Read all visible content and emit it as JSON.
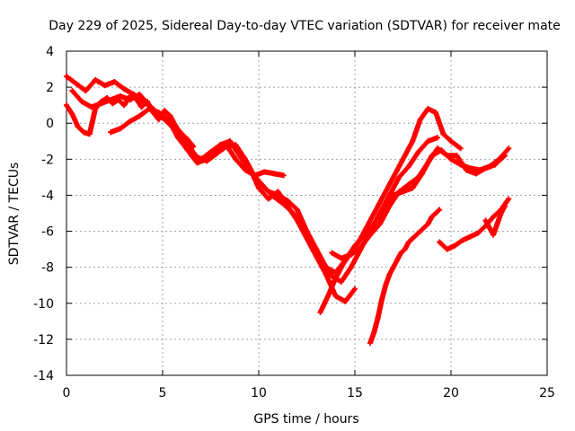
{
  "chart_data": {
    "type": "scatter",
    "title": "Day 229 of 2025, Sidereal Day-to-day VTEC variation (SDTVAR) for receiver mate",
    "xlabel": "GPS time / hours",
    "ylabel": "SDTVAR / TECUs",
    "xlim": [
      0,
      25
    ],
    "ylim": [
      -14,
      4
    ],
    "xticks": [
      0,
      5,
      10,
      15,
      20,
      25
    ],
    "yticks": [
      -14,
      -12,
      -10,
      -8,
      -6,
      -4,
      -2,
      0,
      2,
      4
    ],
    "grid": true,
    "marker": "+",
    "color": "#ff0000",
    "series": [
      {
        "x": [
          0.0,
          0.5,
          1.0,
          1.5,
          2.0,
          2.5,
          3.0,
          3.5,
          4.0,
          4.5,
          5.0,
          5.5,
          6.0,
          6.5,
          7.0,
          7.5,
          8.0,
          8.5,
          9.0,
          9.5,
          10.0,
          10.5,
          11.0,
          11.5,
          12.0,
          12.5,
          13.0,
          13.5,
          14.0,
          14.5,
          15.0,
          15.5,
          16.0,
          16.5,
          17.0,
          17.5,
          18.0,
          18.5,
          19.0,
          19.5,
          20.0,
          20.5,
          21.0,
          21.5,
          22.0,
          22.5,
          23.0
        ],
        "y": [
          2.6,
          2.2,
          1.8,
          2.4,
          2.1,
          2.3,
          1.9,
          1.6,
          1.2,
          0.8,
          0.3,
          -0.2,
          -0.8,
          -1.8,
          -2.0,
          -1.6,
          -1.2,
          -1.0,
          -1.8,
          -2.6,
          -3.2,
          -3.8,
          -4.0,
          -4.3,
          -4.8,
          -6.0,
          -7.0,
          -8.0,
          -8.3,
          -7.6,
          -6.8,
          -6.2,
          -5.6,
          -4.8,
          -4.0,
          -3.8,
          -3.6,
          -2.8,
          -1.8,
          -1.5,
          -2.0,
          -2.3,
          -2.5,
          -2.6,
          -2.4,
          -2.0,
          -1.4
        ]
      },
      {
        "x": [
          0.3,
          0.8,
          1.3,
          1.8,
          2.3,
          2.8,
          3.3,
          3.8,
          4.3,
          4.8,
          5.3,
          5.8,
          6.3,
          6.8,
          7.3,
          7.8,
          8.3,
          8.8,
          9.3,
          9.8,
          10.3,
          10.8,
          11.3,
          11.8,
          12.3,
          12.8,
          13.3,
          13.8,
          14.3,
          14.8,
          15.3,
          15.8,
          16.3,
          16.8,
          17.3,
          17.8,
          18.3,
          18.8,
          19.3
        ],
        "y": [
          1.8,
          1.2,
          0.9,
          1.1,
          1.3,
          1.5,
          1.3,
          1.6,
          1.0,
          0.5,
          0.1,
          -0.5,
          -1.2,
          -1.9,
          -2.1,
          -1.7,
          -1.3,
          -1.2,
          -2.0,
          -3.0,
          -3.6,
          -4.1,
          -4.5,
          -5.0,
          -5.8,
          -6.8,
          -7.8,
          -8.5,
          -8.8,
          -8.0,
          -7.0,
          -6.0,
          -5.0,
          -4.0,
          -3.0,
          -2.4,
          -1.6,
          -1.0,
          -0.8
        ]
      },
      {
        "x": [
          0.0,
          0.3,
          0.6,
          0.9,
          1.2,
          1.5,
          1.8,
          2.1,
          2.4,
          2.7,
          3.0,
          3.3,
          3.6,
          3.9,
          4.2,
          4.5,
          4.8,
          5.1,
          5.4,
          5.7,
          6.0,
          6.3,
          6.6
        ],
        "y": [
          1.0,
          0.5,
          -0.2,
          -0.5,
          -0.6,
          0.8,
          1.2,
          1.4,
          1.1,
          1.3,
          1.0,
          1.5,
          1.4,
          0.9,
          1.2,
          0.6,
          0.2,
          0.7,
          0.4,
          -0.2,
          -0.6,
          -0.9,
          -1.3
        ]
      },
      {
        "x": [
          2.3,
          2.8,
          3.3,
          3.8,
          4.3,
          4.8,
          5.3,
          5.8,
          6.3,
          6.8,
          7.3,
          7.8,
          8.3,
          8.8,
          9.3,
          9.8,
          10.3,
          10.8,
          11.3
        ],
        "y": [
          -0.5,
          -0.3,
          0.1,
          0.4,
          0.8,
          0.6,
          0.2,
          -0.8,
          -1.5,
          -2.2,
          -2.0,
          -1.6,
          -1.2,
          -2.0,
          -2.6,
          -2.9,
          -2.7,
          -2.8,
          -2.9
        ]
      },
      {
        "x": [
          8.5,
          9.0,
          9.5,
          10.0,
          10.5,
          11.0,
          11.5,
          12.0,
          12.5,
          13.0,
          13.5,
          14.0,
          14.5,
          15.0
        ],
        "y": [
          -1.0,
          -1.6,
          -2.4,
          -3.6,
          -4.2,
          -3.8,
          -4.6,
          -5.4,
          -6.4,
          -7.4,
          -8.4,
          -9.6,
          -9.9,
          -9.2
        ]
      },
      {
        "x": [
          13.2,
          13.6,
          14.0,
          14.4,
          14.8,
          15.2,
          15.6,
          16.0,
          16.4,
          16.8,
          17.2,
          17.6,
          18.0,
          18.4,
          18.8,
          19.2,
          19.6,
          20.0,
          20.5
        ],
        "y": [
          -10.5,
          -9.6,
          -8.6,
          -7.8,
          -7.2,
          -6.6,
          -5.8,
          -5.0,
          -4.2,
          -3.4,
          -2.6,
          -1.8,
          -1.0,
          0.2,
          0.8,
          0.6,
          -0.6,
          -1.0,
          -1.4
        ]
      },
      {
        "x": [
          13.8,
          14.3,
          14.8,
          15.3,
          15.8,
          16.3,
          16.8,
          17.3,
          17.8,
          18.3,
          18.8,
          19.3,
          19.8,
          20.3,
          20.8,
          21.3,
          21.8,
          22.3,
          22.8
        ],
        "y": [
          -7.2,
          -7.5,
          -7.3,
          -6.9,
          -6.2,
          -5.6,
          -4.6,
          -3.8,
          -3.4,
          -3.0,
          -2.2,
          -1.4,
          -1.8,
          -1.8,
          -2.6,
          -2.8,
          -2.5,
          -2.3,
          -1.8
        ]
      },
      {
        "x": [
          15.8,
          16.0,
          16.2,
          16.4,
          16.6,
          16.8,
          17.0,
          17.2,
          17.4,
          17.6,
          17.8,
          18.0,
          18.2,
          18.4,
          18.6,
          18.8,
          19.0,
          19.2,
          19.4
        ],
        "y": [
          -12.2,
          -11.6,
          -10.8,
          -9.8,
          -9.0,
          -8.4,
          -8.0,
          -7.6,
          -7.2,
          -7.0,
          -6.6,
          -6.4,
          -6.2,
          -6.0,
          -5.8,
          -5.6,
          -5.2,
          -5.0,
          -4.8
        ]
      },
      {
        "x": [
          19.4,
          19.8,
          20.2,
          20.6,
          21.0,
          21.4,
          21.8,
          22.2,
          22.6,
          23.0
        ],
        "y": [
          -6.6,
          -7.0,
          -6.8,
          -6.5,
          -6.3,
          -6.1,
          -5.7,
          -5.2,
          -4.8,
          -4.2
        ]
      },
      {
        "x": [
          21.8,
          22.0,
          22.2,
          22.4,
          22.6,
          22.8
        ],
        "y": [
          -5.4,
          -5.8,
          -6.2,
          -5.6,
          -5.0,
          -4.6
        ]
      }
    ]
  }
}
